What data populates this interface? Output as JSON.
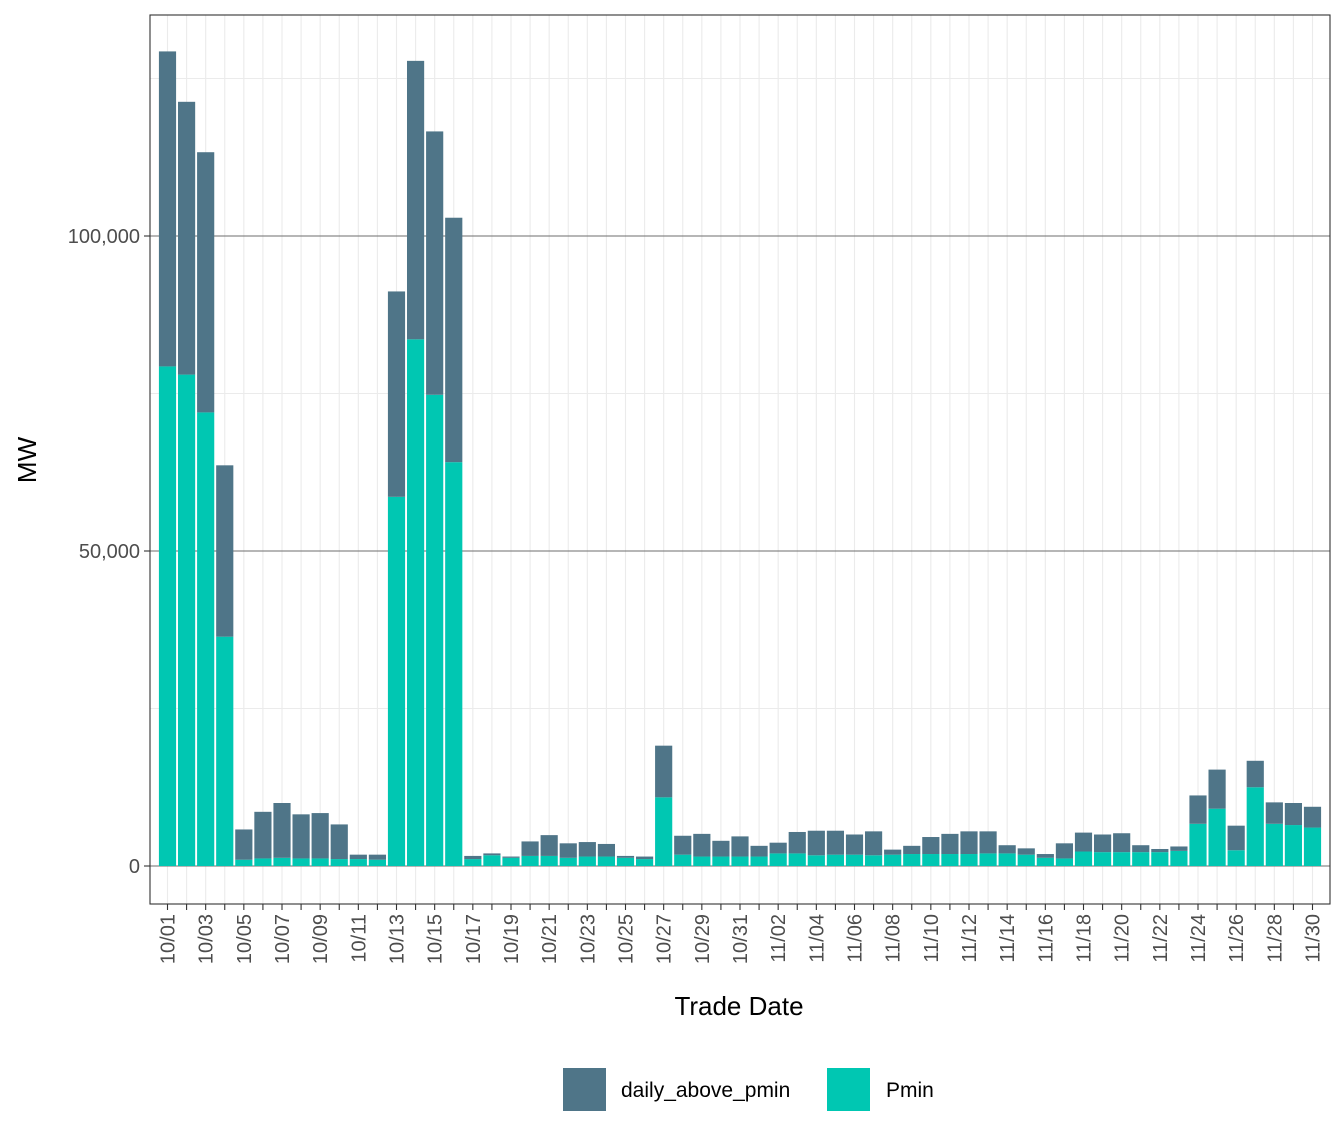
{
  "chart_data": {
    "type": "bar",
    "stacked": true,
    "xlabel": "Trade Date",
    "ylabel": "MW",
    "ylim": [
      -6000,
      135000
    ],
    "yticks": [
      0,
      50000,
      100000
    ],
    "ytick_labels": [
      "0",
      "50,000",
      "100,000"
    ],
    "categories": [
      "10/01",
      "10/02",
      "10/03",
      "10/04",
      "10/05",
      "10/06",
      "10/07",
      "10/08",
      "10/09",
      "10/10",
      "10/11",
      "10/12",
      "10/13",
      "10/14",
      "10/15",
      "10/16",
      "10/17",
      "10/18",
      "10/19",
      "10/20",
      "10/21",
      "10/22",
      "10/23",
      "10/24",
      "10/25",
      "10/26",
      "10/27",
      "10/28",
      "10/29",
      "10/30",
      "10/31",
      "11/01",
      "11/02",
      "11/03",
      "11/04",
      "11/05",
      "11/06",
      "11/07",
      "11/08",
      "11/09",
      "11/10",
      "11/11",
      "11/12",
      "11/13",
      "11/14",
      "11/15",
      "11/16",
      "11/17",
      "11/18",
      "11/19",
      "11/20",
      "11/21",
      "11/22",
      "11/23",
      "11/24",
      "11/25",
      "11/26",
      "11/27",
      "11/28",
      "11/29",
      "11/30"
    ],
    "xtick_labels": [
      "10/01",
      "10/03",
      "10/05",
      "10/07",
      "10/09",
      "10/11",
      "10/13",
      "10/15",
      "10/17",
      "10/19",
      "10/21",
      "10/23",
      "10/25",
      "10/27",
      "10/29",
      "10/31",
      "11/02",
      "11/04",
      "11/06",
      "11/08",
      "11/10",
      "11/12",
      "11/14",
      "11/16",
      "11/18",
      "11/20",
      "11/22",
      "11/24",
      "11/26",
      "11/28",
      "11/30"
    ],
    "series": [
      {
        "name": "Pmin",
        "color": "#00c7b2",
        "values": [
          79300,
          78000,
          72000,
          36400,
          1000,
          1200,
          1300,
          1200,
          1200,
          1100,
          1100,
          1000,
          58600,
          83600,
          74800,
          64100,
          1100,
          1700,
          1300,
          1600,
          1600,
          1300,
          1500,
          1500,
          1300,
          1100,
          10900,
          1800,
          1500,
          1500,
          1500,
          1500,
          2000,
          2000,
          1700,
          1800,
          1800,
          1700,
          1800,
          1900,
          1900,
          1900,
          1900,
          2000,
          2000,
          1800,
          1300,
          1200,
          2300,
          2200,
          2200,
          2200,
          2200,
          2400,
          6700,
          9100,
          2500,
          12500,
          6700,
          6500,
          6100
        ]
      },
      {
        "name": "daily_above_pmin",
        "color": "#4f7588",
        "values": [
          50000,
          43300,
          41300,
          27200,
          4800,
          7400,
          8700,
          7000,
          7200,
          5500,
          700,
          800,
          32600,
          44200,
          41800,
          38800,
          500,
          300,
          200,
          2300,
          3300,
          2300,
          2300,
          2000,
          300,
          400,
          8200,
          3000,
          3600,
          2500,
          3200,
          1700,
          1700,
          3400,
          3900,
          3800,
          3200,
          3800,
          800,
          1300,
          2700,
          3200,
          3600,
          3500,
          1300,
          1000,
          600,
          2400,
          3000,
          2800,
          3000,
          1100,
          500,
          700,
          4500,
          6200,
          3900,
          4200,
          3400,
          3500,
          3300
        ]
      }
    ],
    "legend": {
      "position": "bottom",
      "items": [
        "daily_above_pmin",
        "Pmin"
      ]
    }
  }
}
